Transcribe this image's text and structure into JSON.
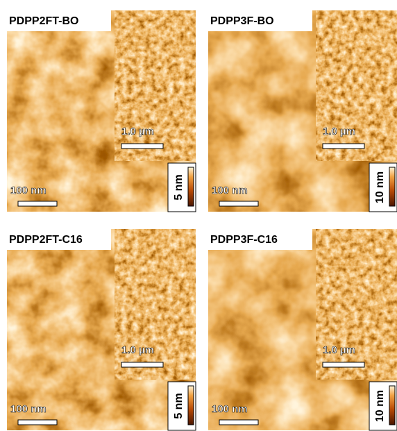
{
  "panels": [
    {
      "title": "PDPP2FT-BO",
      "inset_scale": "1.0 µm",
      "scale": "100 nm",
      "colorbar": "5 nm"
    },
    {
      "title": "PDPP3F-BO",
      "inset_scale": "1.0 µm",
      "scale": "100 nm",
      "colorbar": "10 nm"
    },
    {
      "title": "PDPP2FT-C16",
      "inset_scale": "1.0 µm",
      "scale": "100 nm",
      "colorbar": "5 nm"
    },
    {
      "title": "PDPP3F-C16",
      "inset_scale": "1.0 µm",
      "scale": "100 nm",
      "colorbar": "10 nm"
    }
  ]
}
